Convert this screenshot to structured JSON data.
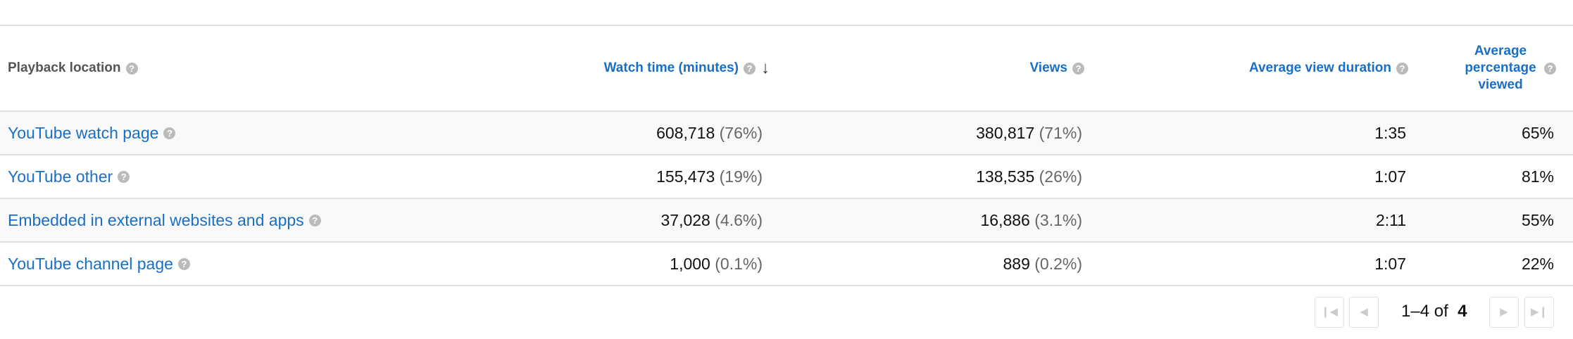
{
  "table": {
    "headers": {
      "location": "Playback location",
      "watch_time": "Watch time (minutes)",
      "views": "Views",
      "avg_duration": "Average view duration",
      "avg_percentage": "Average percentage viewed"
    },
    "sort": {
      "column": "watch_time",
      "direction": "descending",
      "icon": "arrow-down-icon"
    },
    "rows": [
      {
        "location": "YouTube watch page",
        "watch_time": "608,718",
        "watch_time_pct": "(76%)",
        "views": "380,817",
        "views_pct": "(71%)",
        "avg_duration": "1:35",
        "avg_percentage": "65%"
      },
      {
        "location": "YouTube other",
        "watch_time": "155,473",
        "watch_time_pct": "(19%)",
        "views": "138,535",
        "views_pct": "(26%)",
        "avg_duration": "1:07",
        "avg_percentage": "81%"
      },
      {
        "location": "Embedded in external websites and apps",
        "watch_time": "37,028",
        "watch_time_pct": "(4.6%)",
        "views": "16,886",
        "views_pct": "(3.1%)",
        "avg_duration": "2:11",
        "avg_percentage": "55%"
      },
      {
        "location": "YouTube channel page",
        "watch_time": "1,000",
        "watch_time_pct": "(0.1%)",
        "views": "889",
        "views_pct": "(0.2%)",
        "avg_duration": "1:07",
        "avg_percentage": "22%"
      }
    ]
  },
  "pagination": {
    "range": "1–4",
    "of_label": "of",
    "total": "4"
  },
  "colors": {
    "link": "#1a6fc4",
    "muted": "#666666",
    "border": "#e0e0e0"
  }
}
